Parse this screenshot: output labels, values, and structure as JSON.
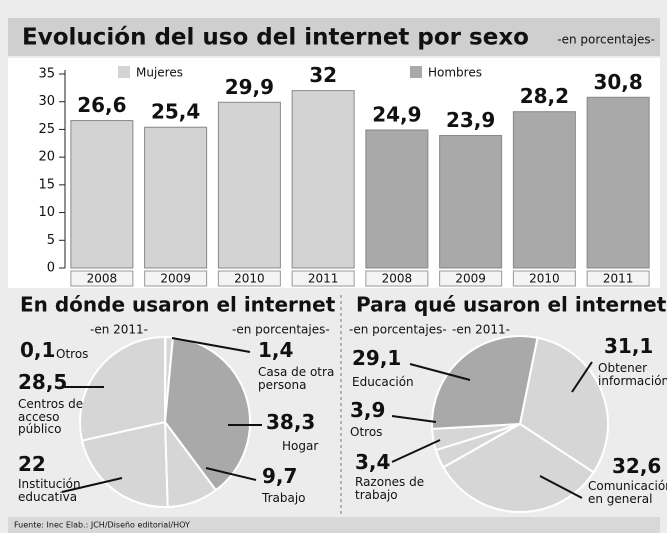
{
  "chart_data": [
    {
      "type": "bar",
      "title": "Evolución del uso del internet por sexo",
      "subtitle": "-en porcentajes-",
      "categories": [
        "2008",
        "2009",
        "2010",
        "2011",
        "2008",
        "2009",
        "2010",
        "2011"
      ],
      "series": [
        {
          "name": "Mujeres",
          "color": "#d3d3d3",
          "values": [
            26.6,
            25.4,
            29.9,
            32,
            null,
            null,
            null,
            null
          ],
          "value_labels": [
            "26,6",
            "25,4",
            "29,9",
            "32",
            null,
            null,
            null,
            null
          ]
        },
        {
          "name": "Hombres",
          "color": "#a9a9a9",
          "values": [
            null,
            null,
            null,
            null,
            24.9,
            23.9,
            28.2,
            30.8
          ],
          "value_labels": [
            null,
            null,
            null,
            null,
            "24,9",
            "23,9",
            "28,2",
            "30,8"
          ]
        }
      ],
      "ylim": [
        0,
        35
      ],
      "yticks": [
        0,
        5,
        10,
        15,
        20,
        25,
        30,
        35
      ]
    },
    {
      "type": "pie",
      "title": "En dónde usaron el internet",
      "annotations": [
        "-en 2011-",
        "-en porcentajes-"
      ],
      "categories": [
        "Otros",
        "Casa de otra persona",
        "Hogar",
        "Trabajo",
        "Institución educativa",
        "Centros de acceso público"
      ],
      "values": [
        0.1,
        1.4,
        38.3,
        9.7,
        22,
        28.5
      ],
      "value_labels": [
        "0,1",
        "1,4",
        "38,3",
        "9,7",
        "22",
        "28,5"
      ],
      "colors": [
        "#d6d6d6",
        "#d6d6d6",
        "#a9a9a9",
        "#d6d6d6",
        "#d6d6d6",
        "#d6d6d6"
      ]
    },
    {
      "type": "pie",
      "title": "Para qué usaron el internet",
      "annotations": [
        "-en porcentajes-",
        "-en 2011-"
      ],
      "categories": [
        "Obtener información",
        "Comunicación en general",
        "Razones de trabajo",
        "Otros",
        "Educación"
      ],
      "values": [
        31.1,
        32.6,
        3.4,
        3.9,
        29.1
      ],
      "value_labels": [
        "31,1",
        "32,6",
        "3,4",
        "3,9",
        "29,1"
      ],
      "colors": [
        "#d6d6d6",
        "#d6d6d6",
        "#d6d6d6",
        "#d6d6d6",
        "#a9a9a9"
      ]
    }
  ],
  "source": "Fuente: Inec  Elab.: JCH/Diseño editorial/HOY"
}
